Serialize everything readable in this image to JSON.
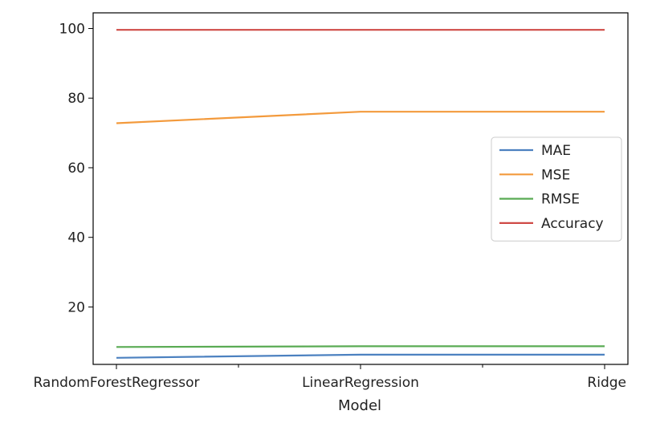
{
  "chart_data": {
    "type": "line",
    "title": "",
    "xlabel": "Model",
    "ylabel": "",
    "categories": [
      "RandomForestRegressor",
      "LinearRegression",
      "Ridge"
    ],
    "x_tick_positions": [
      0,
      1,
      2
    ],
    "x_minor_ticks": [
      0.5,
      1.5
    ],
    "ylim": [
      3.5,
      104.5
    ],
    "yticks": [
      20,
      40,
      60,
      80,
      100
    ],
    "grid": false,
    "legend_position": "center-right",
    "series": [
      {
        "name": "MAE",
        "color": "#4c81c0",
        "values": [
          5.4,
          6.3,
          6.3
        ]
      },
      {
        "name": "MSE",
        "color": "#f39a3c",
        "values": [
          72.8,
          76.1,
          76.1
        ]
      },
      {
        "name": "RMSE",
        "color": "#5aab54",
        "values": [
          8.5,
          8.7,
          8.7
        ]
      },
      {
        "name": "Accuracy",
        "color": "#cf4a46",
        "values": [
          99.6,
          99.6,
          99.6
        ]
      }
    ]
  }
}
